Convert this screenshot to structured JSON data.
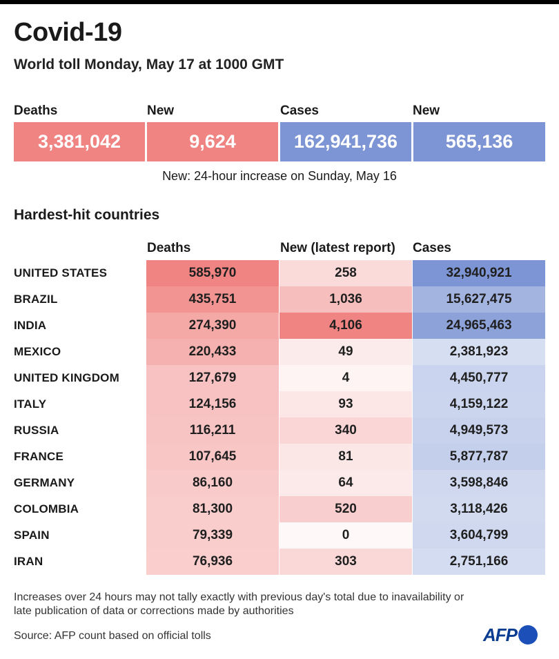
{
  "header": {
    "title": "Covid-19",
    "subtitle": "World toll Monday, May 17 at 1000 GMT"
  },
  "summary": {
    "labels": [
      "Deaths",
      "New",
      "Cases",
      "New"
    ],
    "values": [
      "3,381,042",
      "9,624",
      "162,941,736",
      "565,136"
    ],
    "note": "New: 24-hour increase on Sunday, May 16"
  },
  "colors": {
    "deaths": "#ef8482",
    "cases": "#7d95d4"
  },
  "table": {
    "section_title": "Hardest-hit countries",
    "headers": [
      "Deaths",
      "New (latest report)",
      "Cases"
    ]
  },
  "chart_data": {
    "type": "table",
    "title": "Hardest-hit countries",
    "columns": [
      "Deaths",
      "New (latest report)",
      "Cases"
    ],
    "rows": [
      {
        "country": "UNITED STATES",
        "deaths": 585970,
        "new": 258,
        "cases": 32940921
      },
      {
        "country": "BRAZIL",
        "deaths": 435751,
        "new": 1036,
        "cases": 15627475
      },
      {
        "country": "INDIA",
        "deaths": 274390,
        "new": 4106,
        "cases": 24965463
      },
      {
        "country": "MEXICO",
        "deaths": 220433,
        "new": 49,
        "cases": 2381923
      },
      {
        "country": "UNITED KINGDOM",
        "deaths": 127679,
        "new": 4,
        "cases": 4450777
      },
      {
        "country": "ITALY",
        "deaths": 124156,
        "new": 93,
        "cases": 4159122
      },
      {
        "country": "RUSSIA",
        "deaths": 116211,
        "new": 340,
        "cases": 4949573
      },
      {
        "country": "FRANCE",
        "deaths": 107645,
        "new": 81,
        "cases": 5877787
      },
      {
        "country": "GERMANY",
        "deaths": 86160,
        "new": 64,
        "cases": 3598846
      },
      {
        "country": "COLOMBIA",
        "deaths": 81300,
        "new": 520,
        "cases": 3118426
      },
      {
        "country": "SPAIN",
        "deaths": 79339,
        "new": 0,
        "cases": 3604799
      },
      {
        "country": "IRAN",
        "deaths": 76936,
        "new": 303,
        "cases": 2751166
      }
    ]
  },
  "footer": {
    "footnote": "Increases over 24 hours may not tally exactly with previous day's total due to inavailability or late publication of data or corrections made by authorities",
    "source": "Source: AFP count based on official tolls",
    "logo": "AFP"
  }
}
